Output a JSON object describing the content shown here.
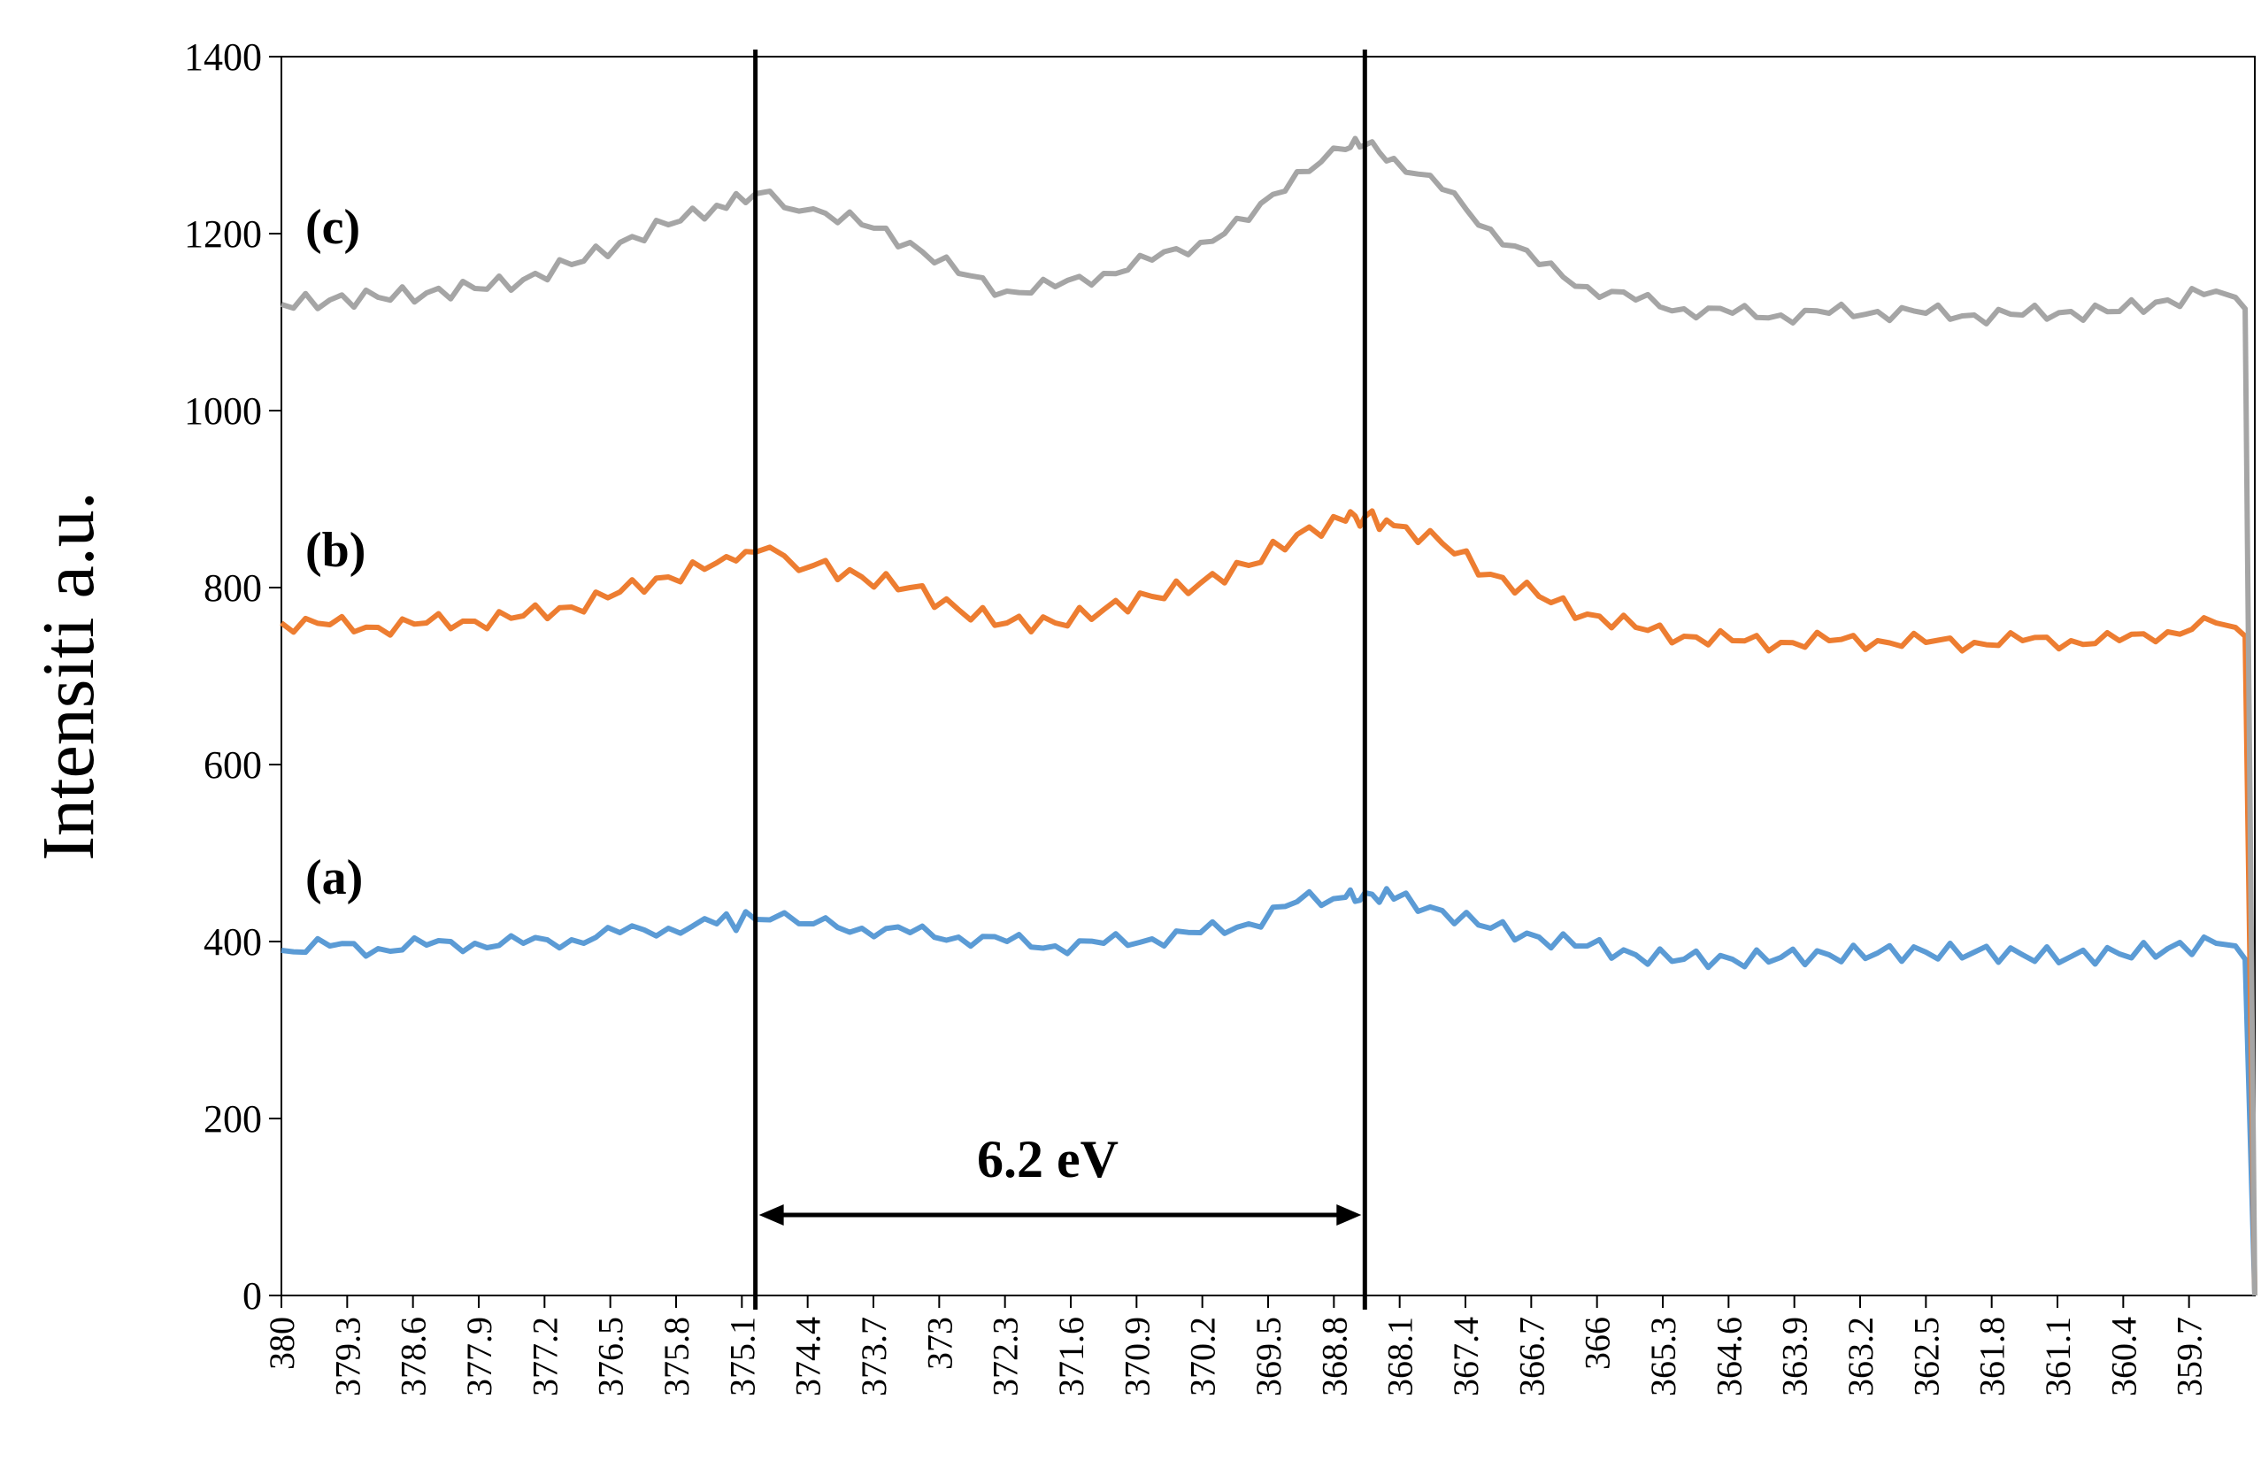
{
  "chart_data": {
    "type": "line",
    "ylabel": "Intensiti a.u.",
    "xlabel": "",
    "xlim": [
      380,
      359.6
    ],
    "x_reversed": true,
    "ylim": [
      0,
      1400
    ],
    "y_ticks": [
      0,
      200,
      400,
      600,
      800,
      1000,
      1200,
      1400
    ],
    "x_tick_labels": [
      "380",
      "379.3",
      "378.6",
      "377.9",
      "377.2",
      "376.5",
      "375.8",
      "375.1",
      "374.4",
      "373.7",
      "373",
      "372.3",
      "371.6",
      "370.9",
      "370.2",
      "369.5",
      "368.8",
      "368.1",
      "367.4",
      "366.7",
      "366",
      "365.3",
      "364.6",
      "363.9",
      "363.2",
      "362.5",
      "361.8",
      "361.1",
      "360.4",
      "359.7"
    ],
    "grid": false,
    "legend": "none",
    "annotations": {
      "vlines": [
        375.1,
        368.8
      ],
      "span_label": "6.2 eV"
    },
    "series": [
      {
        "label": "(a)",
        "color": "#5B9BD5",
        "x": [
          380,
          379.5,
          379,
          378.5,
          378,
          377.5,
          377,
          376.5,
          376,
          375.5,
          375.1,
          374.5,
          374,
          373.5,
          373,
          372.5,
          372,
          371.5,
          371,
          370.5,
          370,
          369.5,
          369,
          368.8,
          368.5,
          368,
          367.5,
          367,
          366.5,
          366,
          365.5,
          365,
          364.5,
          364,
          363.5,
          363,
          362.5,
          362,
          361.5,
          361,
          360.5,
          360,
          359.8,
          359.7,
          359.6
        ],
        "y": [
          390,
          395,
          392,
          396,
          398,
          398,
          402,
          410,
          415,
          420,
          425,
          420,
          415,
          410,
          405,
          400,
          395,
          398,
          403,
          410,
          420,
          445,
          450,
          455,
          448,
          435,
          415,
          405,
          395,
          385,
          380,
          380,
          382,
          385,
          387,
          388,
          388,
          385,
          383,
          386,
          392,
          398,
          395,
          380,
          0
        ]
      },
      {
        "label": "(b)",
        "color": "#ED7D31",
        "x": [
          380,
          379.5,
          379,
          378.5,
          378,
          377.5,
          377,
          376.5,
          376,
          375.5,
          375.1,
          374.5,
          374,
          373.5,
          373,
          372.5,
          372,
          371.5,
          371,
          370.5,
          370,
          369.5,
          369,
          368.8,
          368.5,
          368,
          367.5,
          367,
          366.5,
          366,
          365.5,
          365,
          364.5,
          364,
          363.5,
          363,
          362.5,
          362,
          361.5,
          361,
          360.5,
          360,
          359.8,
          359.7,
          359.6
        ],
        "y": [
          760,
          758,
          755,
          760,
          762,
          768,
          778,
          795,
          812,
          828,
          840,
          825,
          812,
          800,
          775,
          760,
          760,
          775,
          790,
          805,
          825,
          860,
          875,
          880,
          870,
          850,
          815,
          790,
          770,
          755,
          745,
          740,
          738,
          740,
          740,
          738,
          738,
          740,
          740,
          740,
          750,
          760,
          755,
          745,
          0
        ]
      },
      {
        "label": "(c)",
        "color": "#A5A5A5",
        "x": [
          380,
          379.5,
          379,
          378.5,
          378,
          377.5,
          377,
          376.5,
          376,
          375.5,
          375.1,
          374.5,
          374,
          373.5,
          373,
          372.5,
          372,
          371.5,
          371,
          370.5,
          370,
          369.5,
          369,
          368.8,
          368.5,
          368,
          367.5,
          367,
          366.5,
          366,
          365.5,
          365,
          364.5,
          364,
          363.5,
          363,
          362.5,
          362,
          361.5,
          361,
          360.5,
          360,
          359.8,
          359.7,
          359.6
        ],
        "y": [
          1120,
          1125,
          1128,
          1133,
          1138,
          1148,
          1165,
          1190,
          1210,
          1232,
          1245,
          1228,
          1210,
          1190,
          1155,
          1135,
          1140,
          1155,
          1170,
          1190,
          1215,
          1270,
          1295,
          1300,
          1285,
          1250,
          1205,
          1165,
          1140,
          1125,
          1115,
          1110,
          1108,
          1110,
          1112,
          1110,
          1108,
          1108,
          1112,
          1112,
          1125,
          1135,
          1128,
          1115,
          0
        ]
      }
    ]
  }
}
